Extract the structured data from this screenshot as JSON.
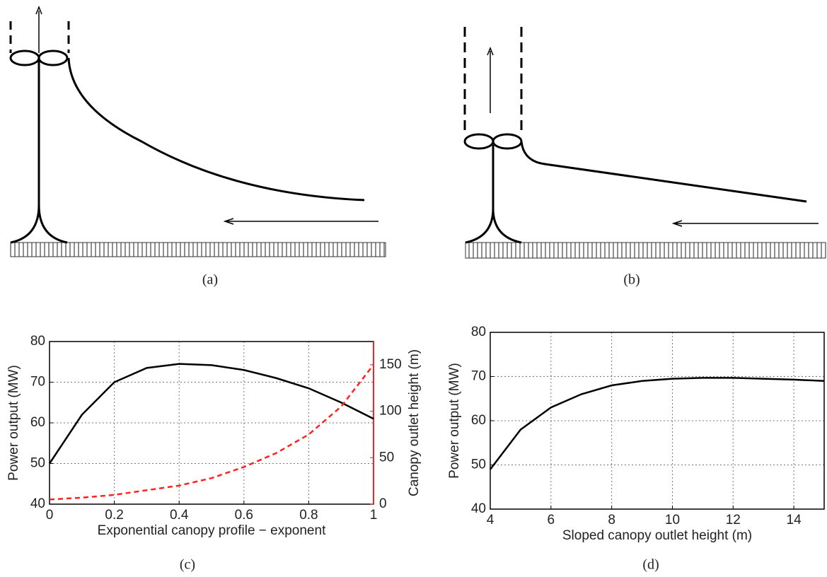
{
  "diagram_captions": [
    "(a)",
    "(b)"
  ],
  "chart_data": [
    {
      "type": "line",
      "caption": "(c)",
      "xlabel": "Exponential canopy profile − exponent",
      "ylabel": "Power output (MW)",
      "y2label": "Canopy outlet height (m)",
      "x": [
        0,
        0.1,
        0.2,
        0.3,
        0.4,
        0.5,
        0.6,
        0.7,
        0.8,
        0.9,
        1
      ],
      "series": [
        {
          "color": "#000000",
          "line_style": "solid",
          "values": [
            50,
            62,
            70,
            73.5,
            74.5,
            74.2,
            73,
            71,
            68.5,
            65,
            61
          ]
        },
        {
          "color": "#ff2020",
          "line_style": "dashed",
          "axis": "y2",
          "values": [
            5,
            7,
            10,
            15,
            20,
            28,
            40,
            55,
            75,
            105,
            150
          ]
        }
      ],
      "xlim": [
        0,
        1
      ],
      "xticks": [
        0,
        0.2,
        0.4,
        0.6,
        0.8,
        1
      ],
      "ylim": [
        40,
        80
      ],
      "yticks": [
        40,
        50,
        60,
        70,
        80
      ],
      "y2lim": [
        0,
        175
      ],
      "y2ticks": [
        0,
        50,
        100,
        150
      ],
      "y2color": "#ff2020",
      "grid": true
    },
    {
      "type": "line",
      "caption": "(d)",
      "xlabel": "Sloped canopy outlet height (m)",
      "ylabel": "Power output (MW)",
      "x": [
        4,
        5,
        6,
        7,
        8,
        9,
        10,
        11,
        12,
        13,
        14,
        15
      ],
      "series": [
        {
          "color": "#000000",
          "line_style": "solid",
          "values": [
            49,
            58,
            63,
            66,
            68,
            69,
            69.5,
            69.7,
            69.7,
            69.5,
            69.3,
            69
          ]
        }
      ],
      "xlim": [
        4,
        15
      ],
      "xticks": [
        4,
        6,
        8,
        10,
        12,
        14
      ],
      "ylim": [
        40,
        80
      ],
      "yticks": [
        40,
        50,
        60,
        70,
        80
      ],
      "grid": true
    }
  ]
}
